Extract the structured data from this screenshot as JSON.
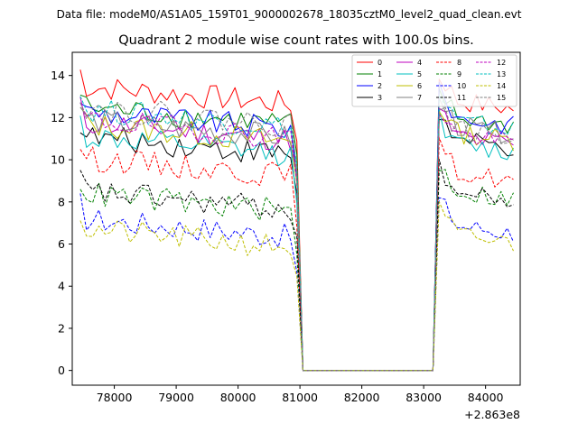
{
  "chart_data": {
    "type": "line",
    "suptitle": "Data file: modeM0/AS1A05_159T01_9000002678_18035cztM0_level2_quad_clean.evt",
    "title": "Quadrant 2 module wise count rates with 100.0s bins.",
    "xlabel": "",
    "ylabel": "",
    "x_offset_label": "+2.863e8",
    "xlim": [
      77320,
      84560
    ],
    "ylim": [
      -0.7,
      15.1
    ],
    "xticks": [
      78000,
      79000,
      80000,
      81000,
      82000,
      83000,
      84000
    ],
    "xtick_labels": [
      "78000",
      "79000",
      "80000",
      "81000",
      "82000",
      "83000",
      "84000"
    ],
    "yticks": [
      0,
      2,
      4,
      6,
      8,
      10,
      12,
      14
    ],
    "ytick_labels": [
      "0",
      "2",
      "4",
      "6",
      "8",
      "10",
      "12",
      "14"
    ],
    "legend_position": "top-right",
    "x_start": 77450,
    "x_step": 100,
    "gap": {
      "last_on_before": 80950,
      "first_zero": 81050,
      "last_zero": 83150,
      "first_on_after": 83250,
      "x_end": 84450
    },
    "series": [
      {
        "name": "0",
        "color": "#ff0000",
        "dash": "solid",
        "level_before": 12.6,
        "level_after": 12.9
      },
      {
        "name": "1",
        "color": "#008000",
        "dash": "solid",
        "level_before": 11.6,
        "level_after": 12.1
      },
      {
        "name": "2",
        "color": "#0000ff",
        "dash": "solid",
        "level_before": 11.4,
        "level_after": 12.1
      },
      {
        "name": "3",
        "color": "#000000",
        "dash": "solid",
        "level_before": 10.2,
        "level_after": 11.0
      },
      {
        "name": "4",
        "color": "#bf00bf",
        "dash": "solid",
        "level_before": 10.9,
        "level_after": 11.2
      },
      {
        "name": "5",
        "color": "#00bfbf",
        "dash": "solid",
        "level_before": 10.2,
        "level_after": 10.8
      },
      {
        "name": "6",
        "color": "#bfbf00",
        "dash": "solid",
        "level_before": 10.8,
        "level_after": 11.4
      },
      {
        "name": "7",
        "color": "#808080",
        "dash": "solid",
        "level_before": 11.0,
        "level_after": 11.7
      },
      {
        "name": "8",
        "color": "#ff0000",
        "dash": "dashed",
        "level_before": 9.2,
        "level_after": 9.5
      },
      {
        "name": "9",
        "color": "#008000",
        "dash": "dashed",
        "level_before": 7.5,
        "level_after": 8.6
      },
      {
        "name": "10",
        "color": "#0000ff",
        "dash": "dashed",
        "level_before": 6.3,
        "level_after": 7.0
      },
      {
        "name": "11",
        "color": "#000000",
        "dash": "dashed",
        "level_before": 7.6,
        "level_after": 8.5
      },
      {
        "name": "12",
        "color": "#bf00bf",
        "dash": "dashed",
        "level_before": 11.0,
        "level_after": 11.3
      },
      {
        "name": "13",
        "color": "#00bfbf",
        "dash": "dashed",
        "level_before": 11.5,
        "level_after": 11.9
      },
      {
        "name": "14",
        "color": "#bfbf00",
        "dash": "dashed",
        "level_before": 5.8,
        "level_after": 6.5
      },
      {
        "name": "15",
        "color": "#808080",
        "dash": "dashed",
        "level_before": 11.6,
        "level_after": 11.5
      }
    ]
  }
}
